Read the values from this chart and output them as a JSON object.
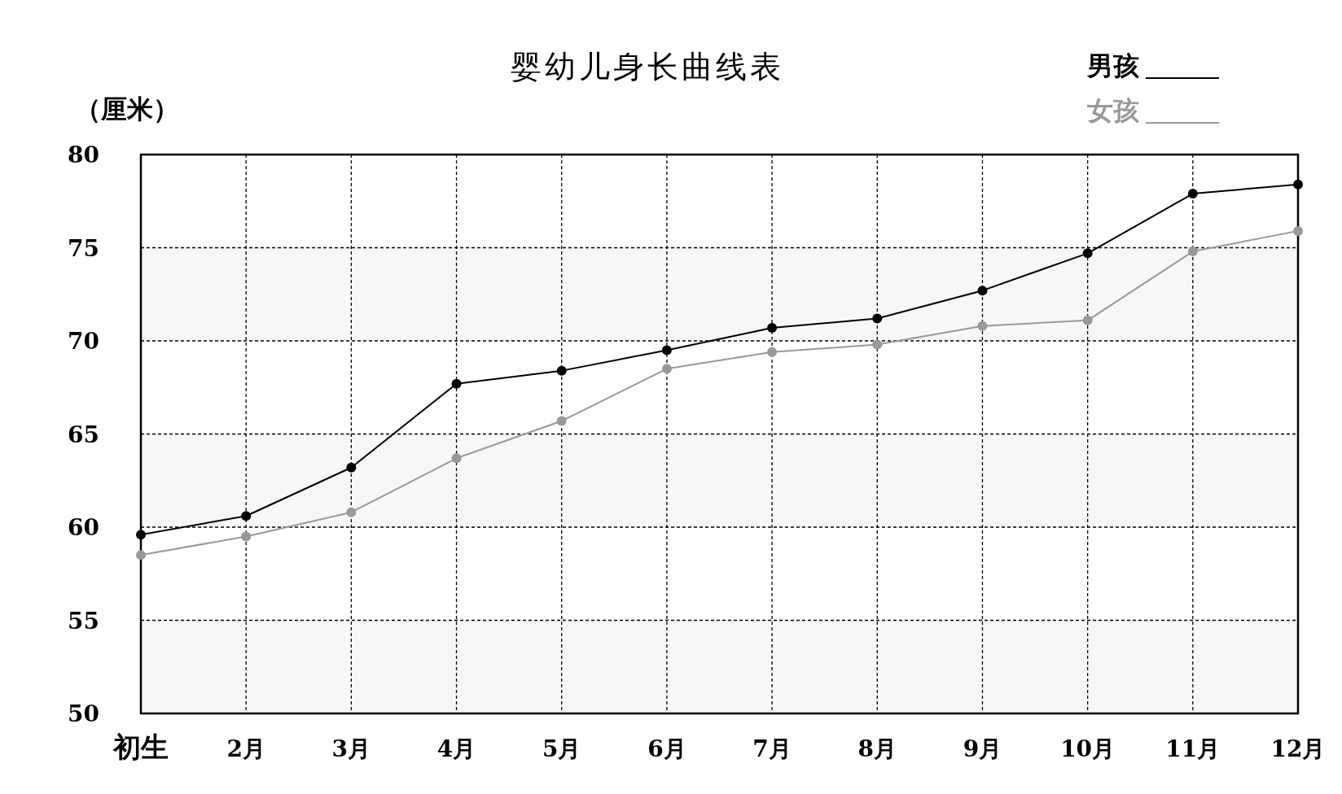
{
  "chart_data": {
    "type": "line",
    "title": "婴幼儿身长曲线表",
    "ylabel": "（厘米）",
    "categories": [
      "初生",
      "2月",
      "3月",
      "4月",
      "5月",
      "6月",
      "7月",
      "8月",
      "9月",
      "10月",
      "11月",
      "12月"
    ],
    "series": [
      {
        "name": "男孩",
        "color": "#000000",
        "values": [
          59.6,
          60.6,
          63.2,
          67.7,
          68.4,
          69.5,
          70.7,
          71.2,
          72.7,
          74.7,
          77.9,
          78.4
        ]
      },
      {
        "name": "女孩",
        "color": "#999999",
        "values": [
          58.5,
          59.5,
          60.8,
          63.7,
          65.7,
          68.5,
          69.4,
          69.8,
          70.8,
          71.1,
          74.8,
          75.9
        ]
      }
    ],
    "ylim": [
      50,
      80
    ],
    "yticks": [
      50,
      55,
      60,
      65,
      70,
      75,
      80
    ],
    "grid": true,
    "legend": "top right",
    "marker": "circle",
    "line_style": "solid",
    "bands": [
      {
        "axis": "y",
        "from": 50,
        "to": 55,
        "color": "#f7f7f7"
      },
      {
        "axis": "y",
        "from": 60,
        "to": 65,
        "color": "#f7f7f7"
      },
      {
        "axis": "y",
        "from": 70,
        "to": 75,
        "color": "#f7f7f7"
      }
    ]
  }
}
